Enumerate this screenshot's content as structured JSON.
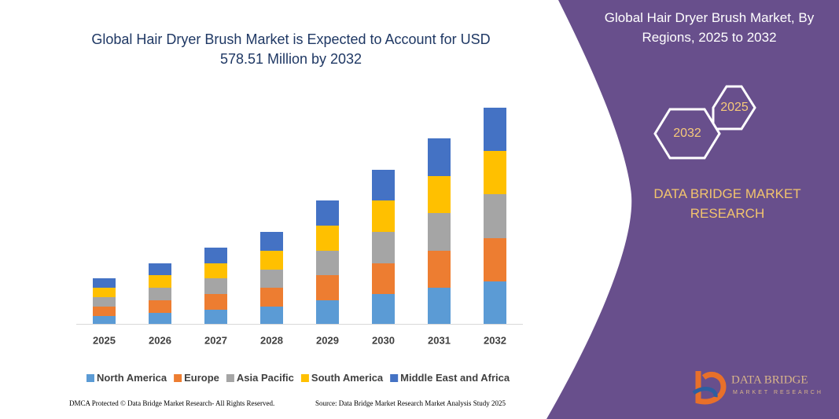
{
  "chart_data": {
    "type": "bar",
    "stacked": true,
    "title": "Global Hair Dryer Brush Market is Expected to Account for USD 578.51 Million by 2032",
    "categories": [
      "2025",
      "2026",
      "2027",
      "2028",
      "2029",
      "2030",
      "2031",
      "2032"
    ],
    "series": [
      {
        "name": "North America",
        "color": "#5b9bd5",
        "values": [
          10,
          14,
          18,
          22,
          30,
          38,
          46,
          54
        ]
      },
      {
        "name": "Europe",
        "color": "#ed7d31",
        "values": [
          12,
          16,
          20,
          24,
          32,
          39,
          47,
          55
        ]
      },
      {
        "name": "Asia Pacific",
        "color": "#a5a5a5",
        "values": [
          12,
          16,
          20,
          23,
          31,
          40,
          48,
          56
        ]
      },
      {
        "name": "South America",
        "color": "#ffc000",
        "values": [
          12,
          16,
          19,
          24,
          32,
          40,
          47,
          55
        ]
      },
      {
        "name": "Middle East and Africa",
        "color": "#4472c4",
        "values": [
          12,
          15,
          20,
          24,
          32,
          39,
          48,
          55
        ]
      }
    ],
    "ylim": [
      0,
      280
    ]
  },
  "panel": {
    "title": "Global Hair Dryer Brush Market, By Regions, 2025 to 2032",
    "hexagons": [
      "2025",
      "2032"
    ],
    "brand": "DATA BRIDGE MARKET RESEARCH"
  },
  "logo": {
    "name": "DATA BRIDGE",
    "tagline": "MARKET RESEARCH"
  },
  "footer": {
    "left": "DMCA Protected © Data Bridge Market Research- All Rights Reserved.",
    "right": "Source: Data Bridge Market Research Market Analysis Study 2025"
  }
}
